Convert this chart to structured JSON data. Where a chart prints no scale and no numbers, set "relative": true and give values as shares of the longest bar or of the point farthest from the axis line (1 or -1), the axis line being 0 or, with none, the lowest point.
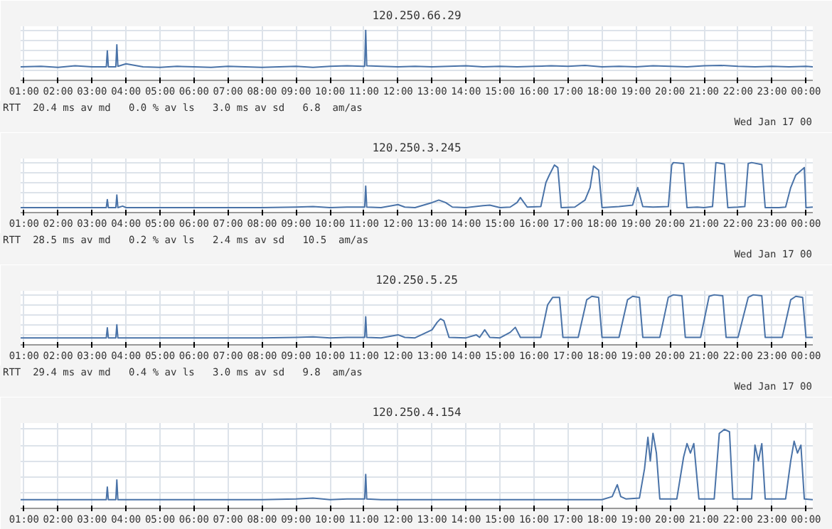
{
  "chart_data": [
    {
      "type": "line",
      "title": "120.250.66.29",
      "relative": true,
      "grid": true,
      "tick_labels": "x",
      "xlim": [
        0.9,
        24.2
      ],
      "xticks": [
        {
          "value": 1,
          "label": "01:00"
        },
        {
          "value": 2,
          "label": "02:00"
        },
        {
          "value": 3,
          "label": "03:00"
        },
        {
          "value": 4,
          "label": "04:00"
        },
        {
          "value": 5,
          "label": "05:00"
        },
        {
          "value": 6,
          "label": "06:00"
        },
        {
          "value": 7,
          "label": "07:00"
        },
        {
          "value": 8,
          "label": "08:00"
        },
        {
          "value": 9,
          "label": "09:00"
        },
        {
          "value": 10,
          "label": "10:00"
        },
        {
          "value": 11,
          "label": "11:00"
        },
        {
          "value": 12,
          "label": "12:00"
        },
        {
          "value": 13,
          "label": "13:00"
        },
        {
          "value": 14,
          "label": "14:00"
        },
        {
          "value": 15,
          "label": "15:00"
        },
        {
          "value": 16,
          "label": "16:00"
        },
        {
          "value": 17,
          "label": "17:00"
        },
        {
          "value": 18,
          "label": "18:00"
        },
        {
          "value": 19,
          "label": "19:00"
        },
        {
          "value": 20,
          "label": "20:00"
        },
        {
          "value": 21,
          "label": "21:00"
        },
        {
          "value": 22,
          "label": "22:00"
        },
        {
          "value": 23,
          "label": "23:00"
        },
        {
          "value": 24,
          "label": "00:00"
        }
      ],
      "annotations": [
        "RTT  20.4 ms av md   0.0 % av ls   3.0 ms av sd   6.8  am/as",
        "Wed Jan 17 00"
      ],
      "series": [
        {
          "color": "#4a73a8",
          "x": [
            0.9,
            1.5,
            2.0,
            2.5,
            3.0,
            3.42,
            3.45,
            3.48,
            3.7,
            3.73,
            3.76,
            4.0,
            4.5,
            5.0,
            5.5,
            6.0,
            6.5,
            7.0,
            7.5,
            8.0,
            8.5,
            9.0,
            9.5,
            10.0,
            10.5,
            11.02,
            11.05,
            11.08,
            11.5,
            12.0,
            12.5,
            13.0,
            13.5,
            14.0,
            14.5,
            15.0,
            15.5,
            16.0,
            16.5,
            17.0,
            17.5,
            18.0,
            18.5,
            19.0,
            19.5,
            20.0,
            20.5,
            21.0,
            21.5,
            22.0,
            22.5,
            23.0,
            23.5,
            24.0,
            24.2
          ],
          "values": [
            0.27,
            0.28,
            0.26,
            0.29,
            0.27,
            0.27,
            0.59,
            0.27,
            0.27,
            0.71,
            0.28,
            0.33,
            0.27,
            0.26,
            0.28,
            0.27,
            0.26,
            0.28,
            0.27,
            0.26,
            0.27,
            0.28,
            0.26,
            0.28,
            0.29,
            0.28,
            1,
            0.29,
            0.28,
            0.27,
            0.28,
            0.27,
            0.28,
            0.29,
            0.27,
            0.28,
            0.27,
            0.28,
            0.29,
            0.28,
            0.3,
            0.27,
            0.28,
            0.27,
            0.29,
            0.28,
            0.27,
            0.29,
            0.3,
            0.28,
            0.27,
            0.28,
            0.27,
            0.28,
            0.27
          ]
        }
      ]
    },
    {
      "type": "line",
      "title": "120.250.3.245",
      "relative": true,
      "grid": true,
      "tick_labels": "x",
      "xlim": [
        0.9,
        24.2
      ],
      "xticks": [
        {
          "value": 1,
          "label": "01:00"
        },
        {
          "value": 2,
          "label": "02:00"
        },
        {
          "value": 3,
          "label": "03:00"
        },
        {
          "value": 4,
          "label": "04:00"
        },
        {
          "value": 5,
          "label": "05:00"
        },
        {
          "value": 6,
          "label": "06:00"
        },
        {
          "value": 7,
          "label": "07:00"
        },
        {
          "value": 8,
          "label": "08:00"
        },
        {
          "value": 9,
          "label": "09:00"
        },
        {
          "value": 10,
          "label": "10:00"
        },
        {
          "value": 11,
          "label": "11:00"
        },
        {
          "value": 12,
          "label": "12:00"
        },
        {
          "value": 13,
          "label": "13:00"
        },
        {
          "value": 14,
          "label": "14:00"
        },
        {
          "value": 15,
          "label": "15:00"
        },
        {
          "value": 16,
          "label": "16:00"
        },
        {
          "value": 17,
          "label": "17:00"
        },
        {
          "value": 18,
          "label": "18:00"
        },
        {
          "value": 19,
          "label": "19:00"
        },
        {
          "value": 20,
          "label": "20:00"
        },
        {
          "value": 21,
          "label": "21:00"
        },
        {
          "value": 22,
          "label": "22:00"
        },
        {
          "value": 23,
          "label": "23:00"
        },
        {
          "value": 24,
          "label": "00:00"
        }
      ],
      "annotations": [
        "RTT  28.5 ms av md   0.2 % av ls   2.4 ms av sd   10.5  am/as",
        "Wed Jan 17 00"
      ],
      "series": [
        {
          "color": "#4a73a8",
          "x": [
            0.9,
            2.0,
            3.0,
            3.42,
            3.45,
            3.48,
            3.7,
            3.73,
            3.76,
            3.9,
            4.0,
            5.0,
            6.0,
            7.0,
            8.0,
            9.0,
            9.5,
            10.0,
            10.5,
            11.02,
            11.05,
            11.08,
            11.5,
            12.0,
            12.2,
            12.5,
            13.0,
            13.2,
            13.4,
            13.6,
            14.0,
            14.5,
            14.7,
            15.0,
            15.3,
            15.5,
            15.6,
            15.8,
            16.2,
            16.35,
            16.45,
            16.6,
            16.7,
            16.8,
            17.2,
            17.5,
            17.65,
            17.75,
            17.9,
            18.0,
            18.5,
            18.9,
            19.05,
            19.2,
            19.5,
            19.95,
            20.05,
            20.1,
            20.4,
            20.5,
            20.8,
            21.0,
            21.25,
            21.35,
            21.6,
            21.7,
            22.0,
            22.2,
            22.3,
            22.4,
            22.7,
            22.8,
            23.2,
            23.4,
            23.55,
            23.7,
            23.95,
            24.0,
            24.2
          ],
          "values": [
            0.1,
            0.1,
            0.1,
            0.1,
            0.26,
            0.1,
            0.1,
            0.35,
            0.1,
            0.13,
            0.1,
            0.1,
            0.1,
            0.1,
            0.1,
            0.11,
            0.12,
            0.1,
            0.11,
            0.11,
            0.53,
            0.11,
            0.1,
            0.16,
            0.11,
            0.1,
            0.2,
            0.25,
            0.2,
            0.11,
            0.1,
            0.14,
            0.15,
            0.1,
            0.11,
            0.2,
            0.3,
            0.11,
            0.12,
            0.6,
            0.75,
            0.95,
            0.9,
            0.1,
            0.11,
            0.25,
            0.5,
            0.93,
            0.85,
            0.1,
            0.12,
            0.15,
            0.5,
            0.12,
            0.11,
            0.12,
            0.95,
            1.0,
            0.98,
            0.1,
            0.11,
            0.1,
            0.12,
            1.0,
            0.97,
            0.1,
            0.11,
            0.12,
            0.98,
            1.0,
            0.96,
            0.1,
            0.1,
            0.11,
            0.5,
            0.75,
            0.9,
            0.1,
            0.11
          ]
        }
      ]
    },
    {
      "type": "line",
      "title": "120.250.5.25",
      "relative": true,
      "grid": true,
      "tick_labels": "x",
      "xlim": [
        0.9,
        24.2
      ],
      "xticks": [
        {
          "value": 1,
          "label": "01:00"
        },
        {
          "value": 2,
          "label": "02:00"
        },
        {
          "value": 3,
          "label": "03:00"
        },
        {
          "value": 4,
          "label": "04:00"
        },
        {
          "value": 5,
          "label": "05:00"
        },
        {
          "value": 6,
          "label": "06:00"
        },
        {
          "value": 7,
          "label": "07:00"
        },
        {
          "value": 8,
          "label": "08:00"
        },
        {
          "value": 9,
          "label": "09:00"
        },
        {
          "value": 10,
          "label": "10:00"
        },
        {
          "value": 11,
          "label": "11:00"
        },
        {
          "value": 12,
          "label": "12:00"
        },
        {
          "value": 13,
          "label": "13:00"
        },
        {
          "value": 14,
          "label": "14:00"
        },
        {
          "value": 15,
          "label": "15:00"
        },
        {
          "value": 16,
          "label": "16:00"
        },
        {
          "value": 17,
          "label": "17:00"
        },
        {
          "value": 18,
          "label": "18:00"
        },
        {
          "value": 19,
          "label": "19:00"
        },
        {
          "value": 20,
          "label": "20:00"
        },
        {
          "value": 21,
          "label": "21:00"
        },
        {
          "value": 22,
          "label": "22:00"
        },
        {
          "value": 23,
          "label": "23:00"
        },
        {
          "value": 24,
          "label": "00:00"
        }
      ],
      "annotations": [
        "RTT  29.4 ms av md   0.4 % av ls   3.0 ms av sd   9.8  am/as",
        "Wed Jan 17 00"
      ],
      "series": [
        {
          "color": "#4a73a8",
          "x": [
            0.9,
            2.0,
            3.0,
            3.42,
            3.45,
            3.48,
            3.7,
            3.73,
            3.76,
            4.0,
            5.0,
            6.0,
            7.0,
            8.0,
            9.0,
            9.5,
            10.0,
            10.5,
            11.02,
            11.05,
            11.08,
            11.5,
            12.0,
            12.2,
            12.5,
            13.0,
            13.15,
            13.25,
            13.35,
            13.5,
            14.0,
            14.3,
            14.4,
            14.55,
            14.7,
            15.0,
            15.3,
            15.45,
            15.6,
            16.2,
            16.4,
            16.55,
            16.75,
            16.85,
            17.3,
            17.55,
            17.7,
            17.9,
            18.0,
            18.5,
            18.75,
            18.9,
            19.1,
            19.2,
            19.7,
            19.95,
            20.1,
            20.35,
            20.45,
            20.9,
            21.15,
            21.3,
            21.55,
            21.65,
            22.0,
            22.3,
            22.45,
            22.7,
            22.8,
            23.3,
            23.55,
            23.7,
            23.9,
            24.0,
            24.2
          ],
          "values": [
            0.14,
            0.14,
            0.14,
            0.14,
            0.34,
            0.14,
            0.14,
            0.4,
            0.14,
            0.14,
            0.14,
            0.14,
            0.14,
            0.14,
            0.15,
            0.16,
            0.14,
            0.15,
            0.15,
            0.56,
            0.15,
            0.14,
            0.2,
            0.15,
            0.14,
            0.3,
            0.45,
            0.52,
            0.48,
            0.15,
            0.14,
            0.2,
            0.15,
            0.3,
            0.15,
            0.14,
            0.25,
            0.35,
            0.15,
            0.15,
            0.8,
            0.95,
            0.95,
            0.15,
            0.15,
            0.9,
            0.97,
            0.95,
            0.15,
            0.15,
            0.9,
            0.97,
            0.95,
            0.15,
            0.15,
            0.95,
            1.0,
            0.98,
            0.15,
            0.15,
            0.97,
            1.0,
            0.98,
            0.15,
            0.15,
            0.95,
            1.0,
            0.98,
            0.15,
            0.15,
            0.9,
            0.97,
            0.95,
            0.15,
            0.15
          ]
        }
      ]
    },
    {
      "type": "line",
      "title": "120.250.4.154",
      "relative": true,
      "grid": true,
      "tick_labels": "x",
      "xlim": [
        0.9,
        24.2
      ],
      "xticks": [
        {
          "value": 1,
          "label": "01:00"
        },
        {
          "value": 2,
          "label": "02:00"
        },
        {
          "value": 3,
          "label": "03:00"
        },
        {
          "value": 4,
          "label": "04:00"
        },
        {
          "value": 5,
          "label": "05:00"
        },
        {
          "value": 6,
          "label": "06:00"
        },
        {
          "value": 7,
          "label": "07:00"
        },
        {
          "value": 8,
          "label": "08:00"
        },
        {
          "value": 9,
          "label": "09:00"
        },
        {
          "value": 10,
          "label": "10:00"
        },
        {
          "value": 11,
          "label": "11:00"
        },
        {
          "value": 12,
          "label": "12:00"
        },
        {
          "value": 13,
          "label": "13:00"
        },
        {
          "value": 14,
          "label": "14:00"
        },
        {
          "value": 15,
          "label": "15:00"
        },
        {
          "value": 16,
          "label": "16:00"
        },
        {
          "value": 17,
          "label": "17:00"
        },
        {
          "value": 18,
          "label": "18:00"
        },
        {
          "value": 19,
          "label": "19:00"
        },
        {
          "value": 20,
          "label": "20:00"
        },
        {
          "value": 21,
          "label": "21:00"
        },
        {
          "value": 22,
          "label": "22:00"
        },
        {
          "value": 23,
          "label": "23:00"
        },
        {
          "value": 24,
          "label": "00:00"
        }
      ],
      "series": [
        {
          "color": "#4a73a8",
          "x": [
            0.9,
            2.0,
            3.0,
            3.42,
            3.45,
            3.48,
            3.7,
            3.73,
            3.76,
            4.0,
            5.0,
            6.0,
            7.0,
            8.0,
            9.0,
            9.5,
            10.0,
            10.5,
            11.02,
            11.05,
            11.08,
            11.5,
            12.0,
            13.0,
            14.0,
            15.0,
            16.0,
            17.0,
            18.0,
            18.3,
            18.45,
            18.55,
            18.7,
            19.1,
            19.25,
            19.35,
            19.42,
            19.5,
            19.6,
            19.7,
            20.2,
            20.4,
            20.5,
            20.6,
            20.7,
            20.85,
            21.3,
            21.45,
            21.6,
            21.75,
            21.85,
            22.4,
            22.5,
            22.6,
            22.7,
            22.8,
            23.4,
            23.55,
            23.65,
            23.75,
            23.85,
            23.95,
            24.2
          ],
          "values": [
            0.11,
            0.11,
            0.11,
            0.11,
            0.27,
            0.11,
            0.11,
            0.36,
            0.11,
            0.11,
            0.11,
            0.11,
            0.11,
            0.11,
            0.12,
            0.13,
            0.11,
            0.12,
            0.12,
            0.43,
            0.12,
            0.11,
            0.11,
            0.11,
            0.11,
            0.11,
            0.11,
            0.11,
            0.11,
            0.15,
            0.3,
            0.15,
            0.12,
            0.13,
            0.5,
            0.9,
            0.6,
            0.95,
            0.7,
            0.12,
            0.12,
            0.65,
            0.82,
            0.7,
            0.82,
            0.12,
            0.12,
            0.95,
            1.0,
            0.97,
            0.12,
            0.12,
            0.8,
            0.6,
            0.82,
            0.12,
            0.12,
            0.6,
            0.85,
            0.7,
            0.8,
            0.12,
            0.11
          ]
        }
      ]
    }
  ]
}
